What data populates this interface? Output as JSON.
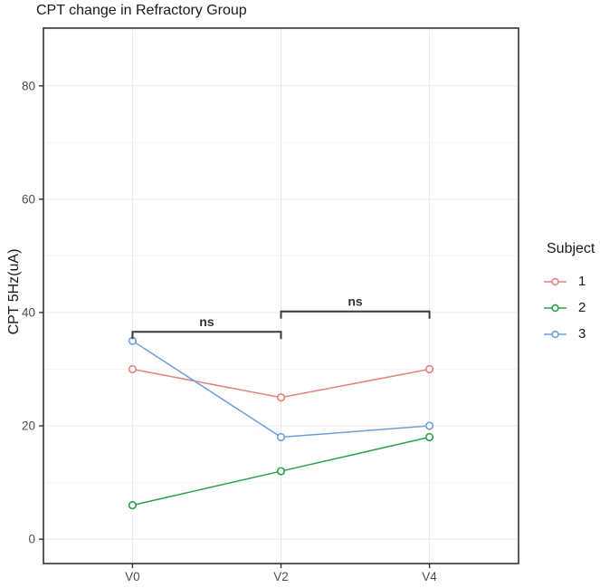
{
  "figure": {
    "title": "CPT change in Refractory Group",
    "background": "#ffffff"
  },
  "chart_data": {
    "type": "line",
    "title": "CPT change in Refractory Group",
    "xlabel": "",
    "ylabel": "CPT 5Hz(uA)",
    "categories": [
      "V0",
      "V2",
      "V4"
    ],
    "series": [
      {
        "name": "1",
        "color": "#e4837b",
        "values": [
          30,
          25,
          30
        ]
      },
      {
        "name": "2",
        "color": "#2aa04c",
        "values": [
          6,
          12,
          18
        ]
      },
      {
        "name": "3",
        "color": "#6f9fd6",
        "values": [
          35,
          18,
          20
        ]
      }
    ],
    "legend_title": "Subject",
    "legend_position": "right",
    "marker": "open-circle",
    "y_ticks": [
      0,
      20,
      40,
      60,
      80
    ],
    "y_minor_ticks": [
      10,
      30,
      50,
      70,
      90
    ],
    "ylim": [
      -4.3,
      90.2
    ],
    "x_positions": [
      0.1875,
      0.5,
      0.8125
    ],
    "grid": true,
    "annotations": [
      {
        "label": "ns",
        "from": "V0",
        "to": "V2",
        "y": 36.6
      },
      {
        "label": "ns",
        "from": "V2",
        "to": "V4",
        "y": 40.2
      }
    ]
  },
  "style": {
    "grid_major": "#e9e9e9",
    "grid_minor": "#f5f5f5",
    "panel_border": "#333333",
    "tick_color": "#333333",
    "tick_label_color": "#4d4d4d",
    "title_color": "#1a1a1a",
    "bracket_color": "#3a3a3a",
    "bracket_label_color": "#333333",
    "marker_fill": "#ffffff"
  }
}
